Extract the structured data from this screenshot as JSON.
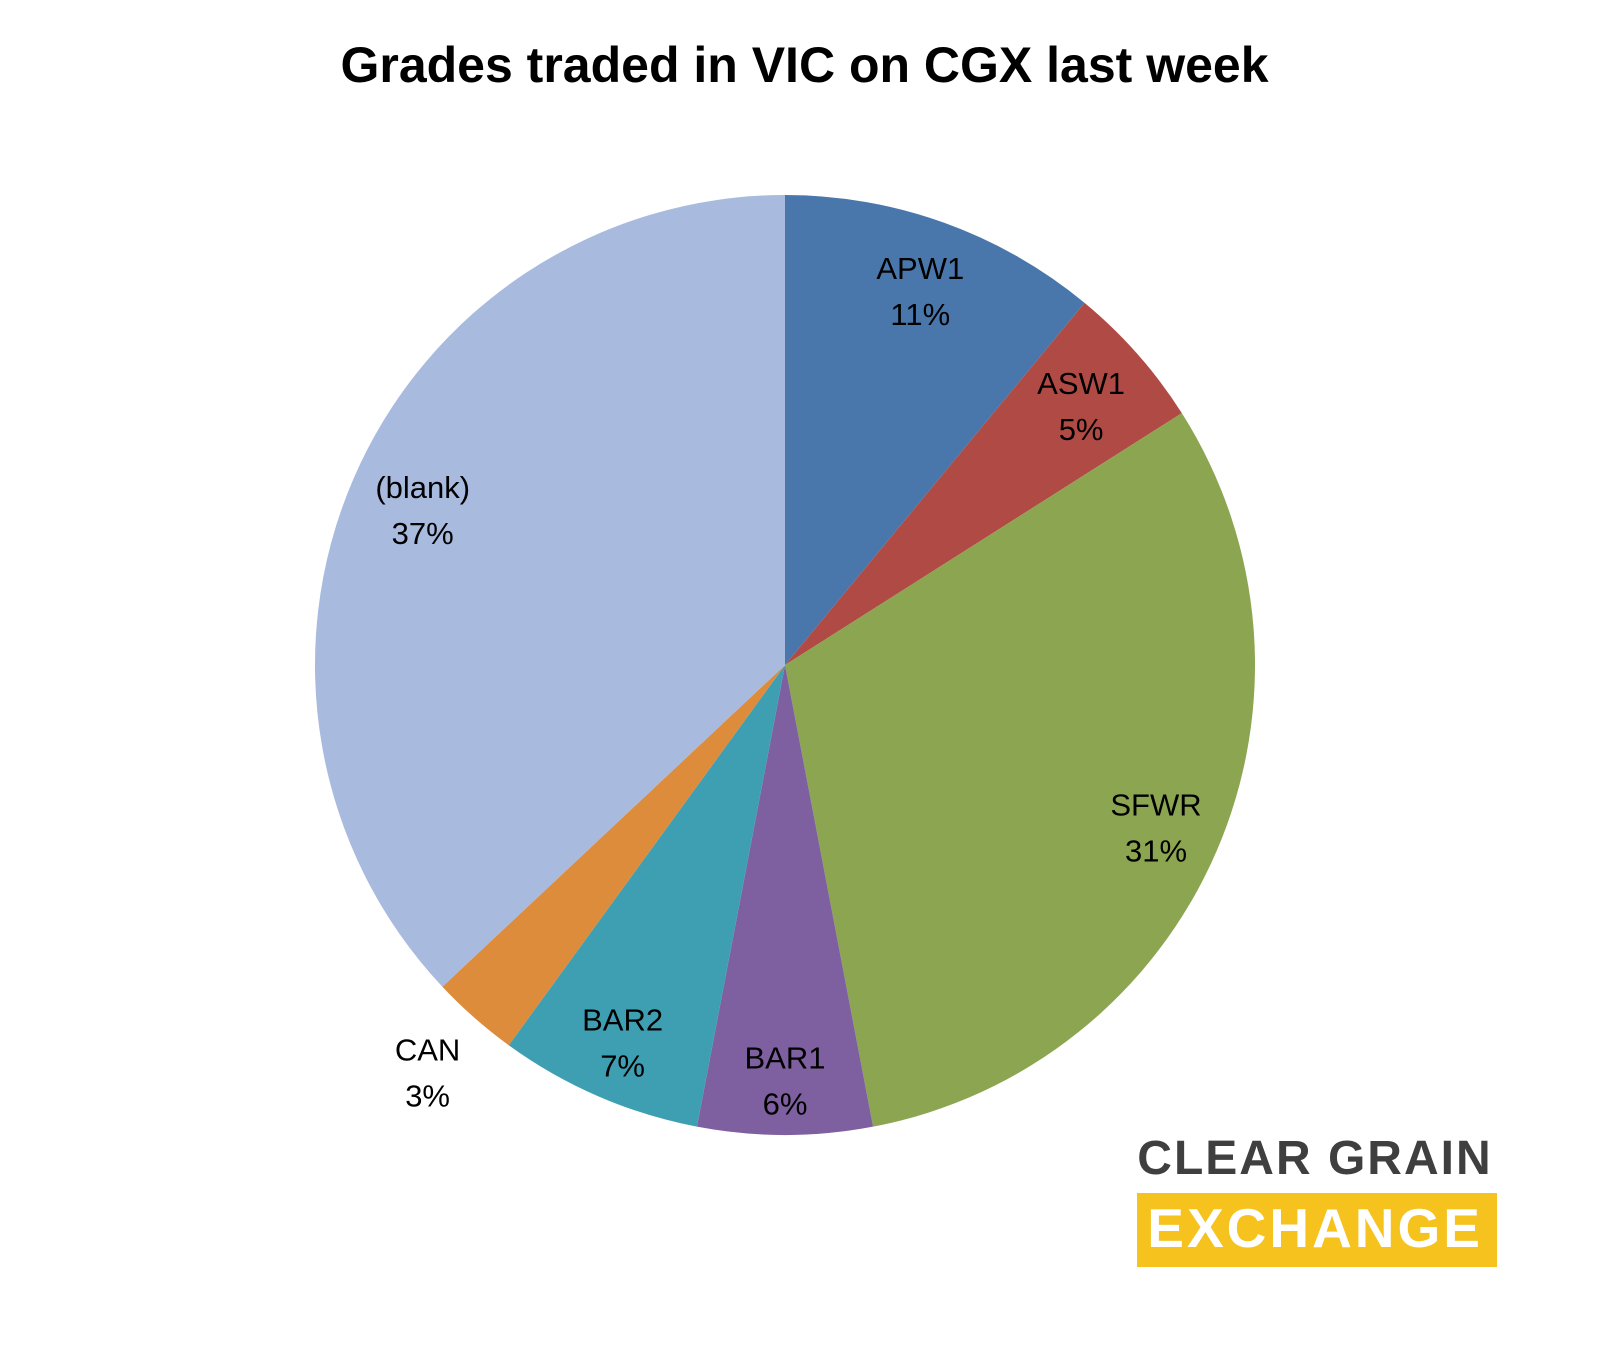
{
  "title": "Grades traded in VIC on CGX last week",
  "chart_data": {
    "type": "pie",
    "title": "Grades traded in VIC on CGX last week",
    "start_angle_deg": 0,
    "direction": "clockwise",
    "total_pct": 100,
    "slices": [
      {
        "label": "APW1",
        "value_pct": 11,
        "color": "#4a77ab",
        "label_r": 0.85
      },
      {
        "label": "ASW1",
        "value_pct": 5,
        "color": "#b04a45",
        "label_r": 0.84
      },
      {
        "label": "SFWR",
        "value_pct": 31,
        "color": "#8ca550",
        "label_r": 0.86
      },
      {
        "label": "BAR1",
        "value_pct": 6,
        "color": "#7e60a0",
        "label_r": 0.88
      },
      {
        "label": "BAR2",
        "value_pct": 7,
        "color": "#3e9fb3",
        "label_r": 0.87
      },
      {
        "label": "CAN",
        "value_pct": 3,
        "color": "#dd8c3c",
        "label_r": 1.15
      },
      {
        "label": "(blank)",
        "value_pct": 37,
        "color": "#a9badf",
        "label_r": 0.84
      }
    ],
    "legend": "none",
    "label_style": "name-and-percent-on-slice"
  },
  "logo": {
    "line1": "CLEAR GRAIN",
    "line2": "EXCHANGE",
    "accent_color": "#f6c21d",
    "text_color": "#3f3f3f"
  }
}
